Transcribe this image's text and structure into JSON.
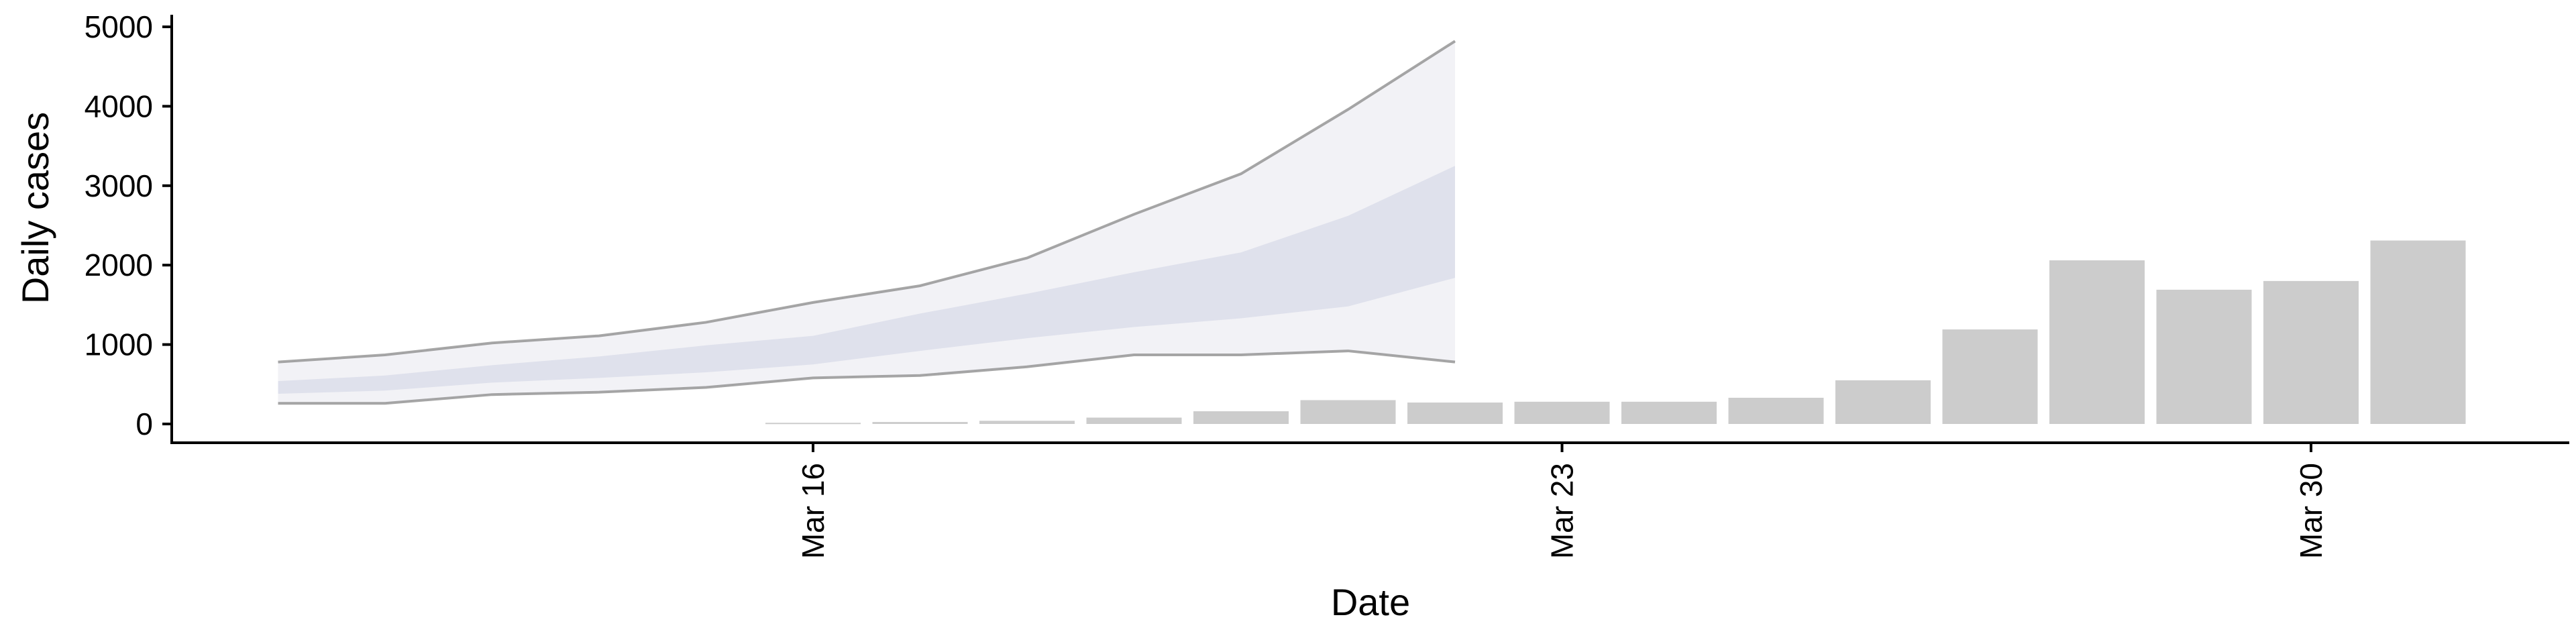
{
  "chart_data": {
    "type": "bar",
    "xlabel": "Date",
    "ylabel": "Daily cases",
    "ylim": [
      0,
      5000
    ],
    "y_ticks": [
      0,
      1000,
      2000,
      3000,
      4000,
      5000
    ],
    "x_ticks": [
      {
        "date": "2020-03-16",
        "label": "Mar 16"
      },
      {
        "date": "2020-03-23",
        "label": "Mar 23"
      },
      {
        "date": "2020-03-30",
        "label": "Mar 30"
      }
    ],
    "x_range": [
      "2020-03-10",
      "2020-04-02"
    ],
    "grid": false,
    "bar_color": "#cccccc",
    "bars": {
      "dates": [
        "2020-03-16",
        "2020-03-17",
        "2020-03-18",
        "2020-03-19",
        "2020-03-20",
        "2020-03-21",
        "2020-03-22",
        "2020-03-23",
        "2020-03-24",
        "2020-03-25",
        "2020-03-26",
        "2020-03-27",
        "2020-03-28",
        "2020-03-29",
        "2020-03-30",
        "2020-03-31"
      ],
      "values": [
        15,
        25,
        40,
        80,
        160,
        300,
        270,
        280,
        280,
        330,
        550,
        1190,
        2060,
        1690,
        1800,
        2310
      ]
    },
    "forecast": {
      "dates": [
        "2020-03-11",
        "2020-03-12",
        "2020-03-13",
        "2020-03-14",
        "2020-03-15",
        "2020-03-16",
        "2020-03-17",
        "2020-03-18",
        "2020-03-19",
        "2020-03-20",
        "2020-03-21",
        "2020-03-22"
      ],
      "lower_outer": [
        260,
        260,
        370,
        400,
        460,
        580,
        610,
        720,
        870,
        870,
        920,
        780
      ],
      "lower_inner": [
        380,
        420,
        520,
        580,
        650,
        750,
        920,
        1080,
        1220,
        1330,
        1480,
        1840
      ],
      "upper_inner": [
        540,
        610,
        740,
        850,
        990,
        1110,
        1390,
        1640,
        1910,
        2160,
        2620,
        3250
      ],
      "upper_outer": [
        780,
        870,
        1020,
        1110,
        1280,
        1530,
        1740,
        2090,
        2640,
        3150,
        3960,
        4820
      ],
      "outer_band_color": "#f2f2f6",
      "inner_band_color": "#dfe1ec",
      "line_color": "#888888"
    }
  }
}
